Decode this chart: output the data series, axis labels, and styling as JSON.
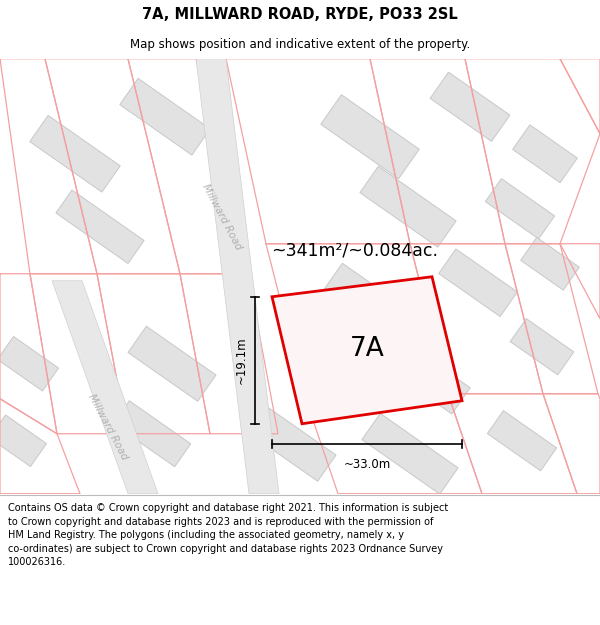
{
  "title_line1": "7A, MILLWARD ROAD, RYDE, PO33 2SL",
  "title_line2": "Map shows position and indicative extent of the property.",
  "footer_text": "Contains OS data © Crown copyright and database right 2021. This information is subject to Crown copyright and database rights 2023 and is reproduced with the permission of HM Land Registry. The polygons (including the associated geometry, namely x, y co-ordinates) are subject to Crown copyright and database rights 2023 Ordnance Survey 100026316.",
  "bg_color": "#f0f0f0",
  "building_fill": "#e2e2e2",
  "building_edge": "#c8c8c8",
  "pink": "#f5a0a0",
  "red": "#e00000",
  "highlight_fill": "#fdf5f5",
  "area_text": "~341m²/~0.084ac.",
  "label_7A": "7A",
  "dim_width": "~33.0m",
  "dim_height": "~19.1m",
  "road_label1": "Millward Road",
  "road_label2": "Millward Road",
  "road_fill": "#e8e8e8",
  "road_edge": "#d0d0d0"
}
